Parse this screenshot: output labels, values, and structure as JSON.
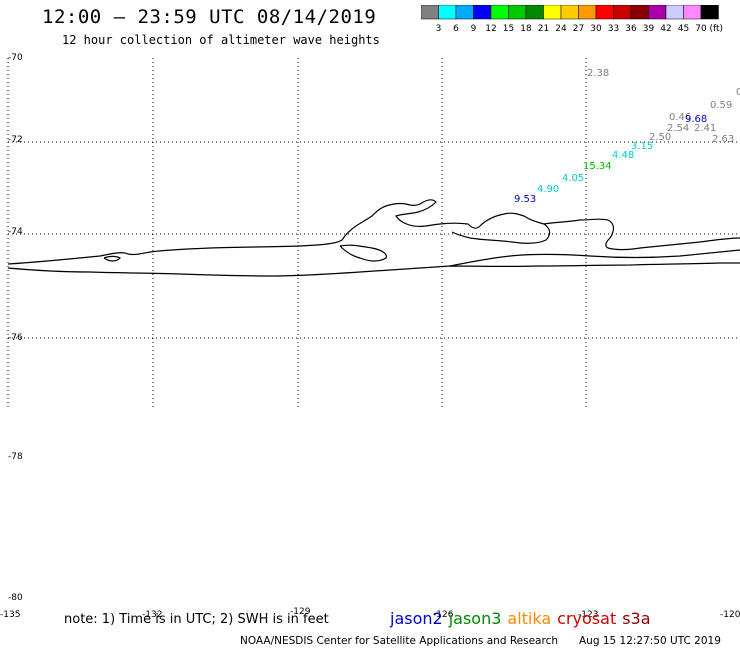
{
  "title": "12:00 – 23:59 UTC 08/14/2019",
  "subtitle": "12 hour collection of altimeter wave heights",
  "legend": {
    "colors": [
      "#808080",
      "#00ffff",
      "#00aaff",
      "#0000ff",
      "#00ff00",
      "#00c800",
      "#008800",
      "#ffff00",
      "#ffcc00",
      "#ff9900",
      "#ff0000",
      "#c80000",
      "#880000",
      "#aa00aa",
      "#ccccff",
      "#ff88ff",
      "#000000"
    ],
    "labels": [
      "3",
      "6",
      "9",
      "12",
      "15",
      "18",
      "21",
      "24",
      "27",
      "30",
      "33",
      "36",
      "39",
      "42",
      "45",
      "70"
    ],
    "unit": "(ft)"
  },
  "map": {
    "lat_labels": [
      "-70",
      "-72",
      "-74",
      "-76",
      "-78",
      "-80"
    ],
    "lon_labels": [
      "-135",
      "-132",
      "-129",
      "-126",
      "-123",
      "-120"
    ],
    "wave_heights": [
      {
        "value": "2.38",
        "color": "#808080"
      },
      {
        "value": "0.",
        "color": "#808080"
      },
      {
        "value": "0.59",
        "color": "#808080"
      },
      {
        "value": "0.46",
        "color": "#808080"
      },
      {
        "value": "9.68",
        "color": "#0000cc"
      },
      {
        "value": "2.54",
        "color": "#808080"
      },
      {
        "value": "2.41",
        "color": "#808080"
      },
      {
        "value": "2.50",
        "color": "#808080"
      },
      {
        "value": "2.63",
        "color": "#808080"
      },
      {
        "value": "3.15",
        "color": "#00cccc"
      },
      {
        "value": "4.48",
        "color": "#00cccc"
      },
      {
        "value": "15.34",
        "color": "#00bb00"
      },
      {
        "value": "4.05",
        "color": "#00cccc"
      },
      {
        "value": "4.90",
        "color": "#00cccc"
      },
      {
        "value": "9.53",
        "color": "#0000cc"
      }
    ]
  },
  "footer": {
    "note": "note: 1) Time is in UTC; 2) SWH is in feet",
    "missions": [
      {
        "name": "jason2",
        "color": "#0000cc"
      },
      {
        "name": "jason3",
        "color": "#008800"
      },
      {
        "name": "altika",
        "color": "#ff8800"
      },
      {
        "name": "cryosat",
        "color": "#cc0000"
      },
      {
        "name": "s3a",
        "color": "#880000"
      }
    ],
    "credit": "NOAA/NESDIS Center for Satellite Applications and Research",
    "timestamp": "Aug 15 12:27:50 UTC 2019"
  }
}
